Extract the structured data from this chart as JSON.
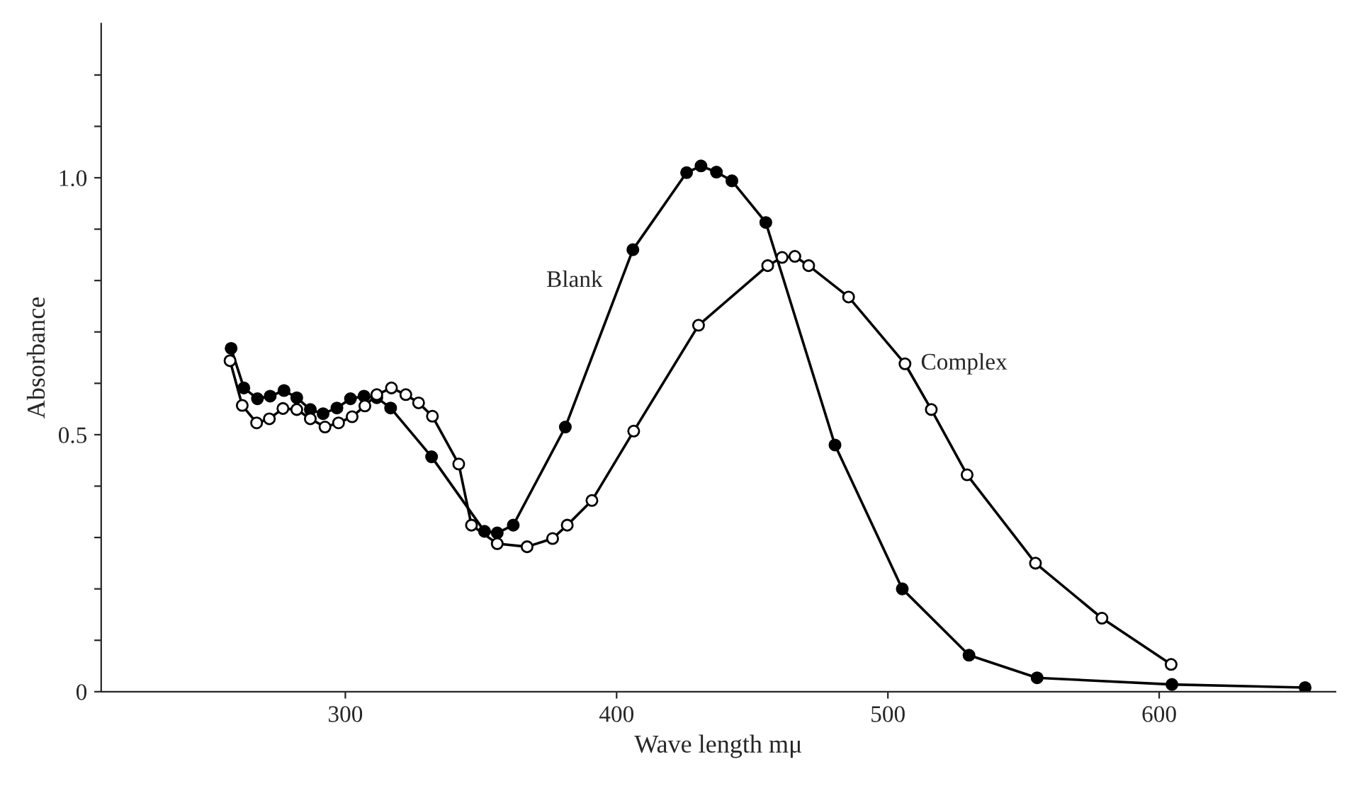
{
  "chart_data": {
    "type": "line",
    "xlabel": "Wave length mμ",
    "ylabel": "Absorbance",
    "xlim": [
      210,
      665
    ],
    "ylim": [
      0,
      1.3
    ],
    "xticks": [
      300,
      400,
      500,
      600
    ],
    "yticks": [
      0,
      {
        "value": 0.1,
        "label": null
      },
      {
        "value": 0.2,
        "label": null
      },
      {
        "value": 0.3,
        "label": null
      },
      {
        "value": 0.4,
        "label": null
      },
      0.5,
      {
        "value": 0.6,
        "label": null
      },
      {
        "value": 0.7,
        "label": null
      },
      {
        "value": 0.8,
        "label": null
      },
      {
        "value": 0.9,
        "label": null
      },
      {
        "value": 1.0,
        "label": "1.0"
      },
      {
        "value": 1.1,
        "label": null
      },
      {
        "value": 1.2,
        "label": null
      }
    ],
    "grid": false,
    "legend": false,
    "marker": "circle",
    "line_style": "solid",
    "series": [
      {
        "name": "Blank",
        "color": "#000000",
        "x": [
          257.9,
          262.6,
          267.6,
          272.3,
          277.4,
          282.1,
          287.1,
          291.8,
          296.9,
          301.9,
          306.9,
          311.6,
          316.7,
          331.8,
          351.3,
          356.0,
          361.9,
          381.1,
          406.0,
          425.8,
          431.1,
          436.8,
          442.5,
          455.0,
          480.5,
          505.3,
          529.9,
          555.0,
          604.7,
          653.8
        ],
        "values": [
          0.668,
          0.591,
          0.57,
          0.575,
          0.586,
          0.572,
          0.549,
          0.541,
          0.552,
          0.57,
          0.575,
          0.572,
          0.552,
          0.457,
          0.312,
          0.309,
          0.324,
          0.515,
          0.86,
          1.01,
          1.023,
          1.011,
          0.994,
          0.913,
          0.48,
          0.2,
          0.071,
          0.027,
          0.014,
          0.008
        ]
      },
      {
        "name": "Complex",
        "color": "#000000",
        "x": [
          257.5,
          262.0,
          267.3,
          272.0,
          277.0,
          282.1,
          287.1,
          292.5,
          297.5,
          302.5,
          307.2,
          311.6,
          317.0,
          322.3,
          327.0,
          332.1,
          341.8,
          346.5,
          356.0,
          367.0,
          376.4,
          381.8,
          390.9,
          406.3,
          430.2,
          455.7,
          461.0,
          465.7,
          470.8,
          485.5,
          506.3,
          516.0,
          529.2,
          554.4,
          578.9,
          604.4
        ],
        "values": [
          0.644,
          0.557,
          0.523,
          0.531,
          0.551,
          0.549,
          0.531,
          0.515,
          0.523,
          0.535,
          0.556,
          0.578,
          0.591,
          0.578,
          0.562,
          0.536,
          0.443,
          0.324,
          0.288,
          0.282,
          0.298,
          0.324,
          0.372,
          0.507,
          0.713,
          0.829,
          0.845,
          0.847,
          0.829,
          0.768,
          0.638,
          0.549,
          0.422,
          0.25,
          0.143,
          0.053
        ]
      }
    ]
  }
}
